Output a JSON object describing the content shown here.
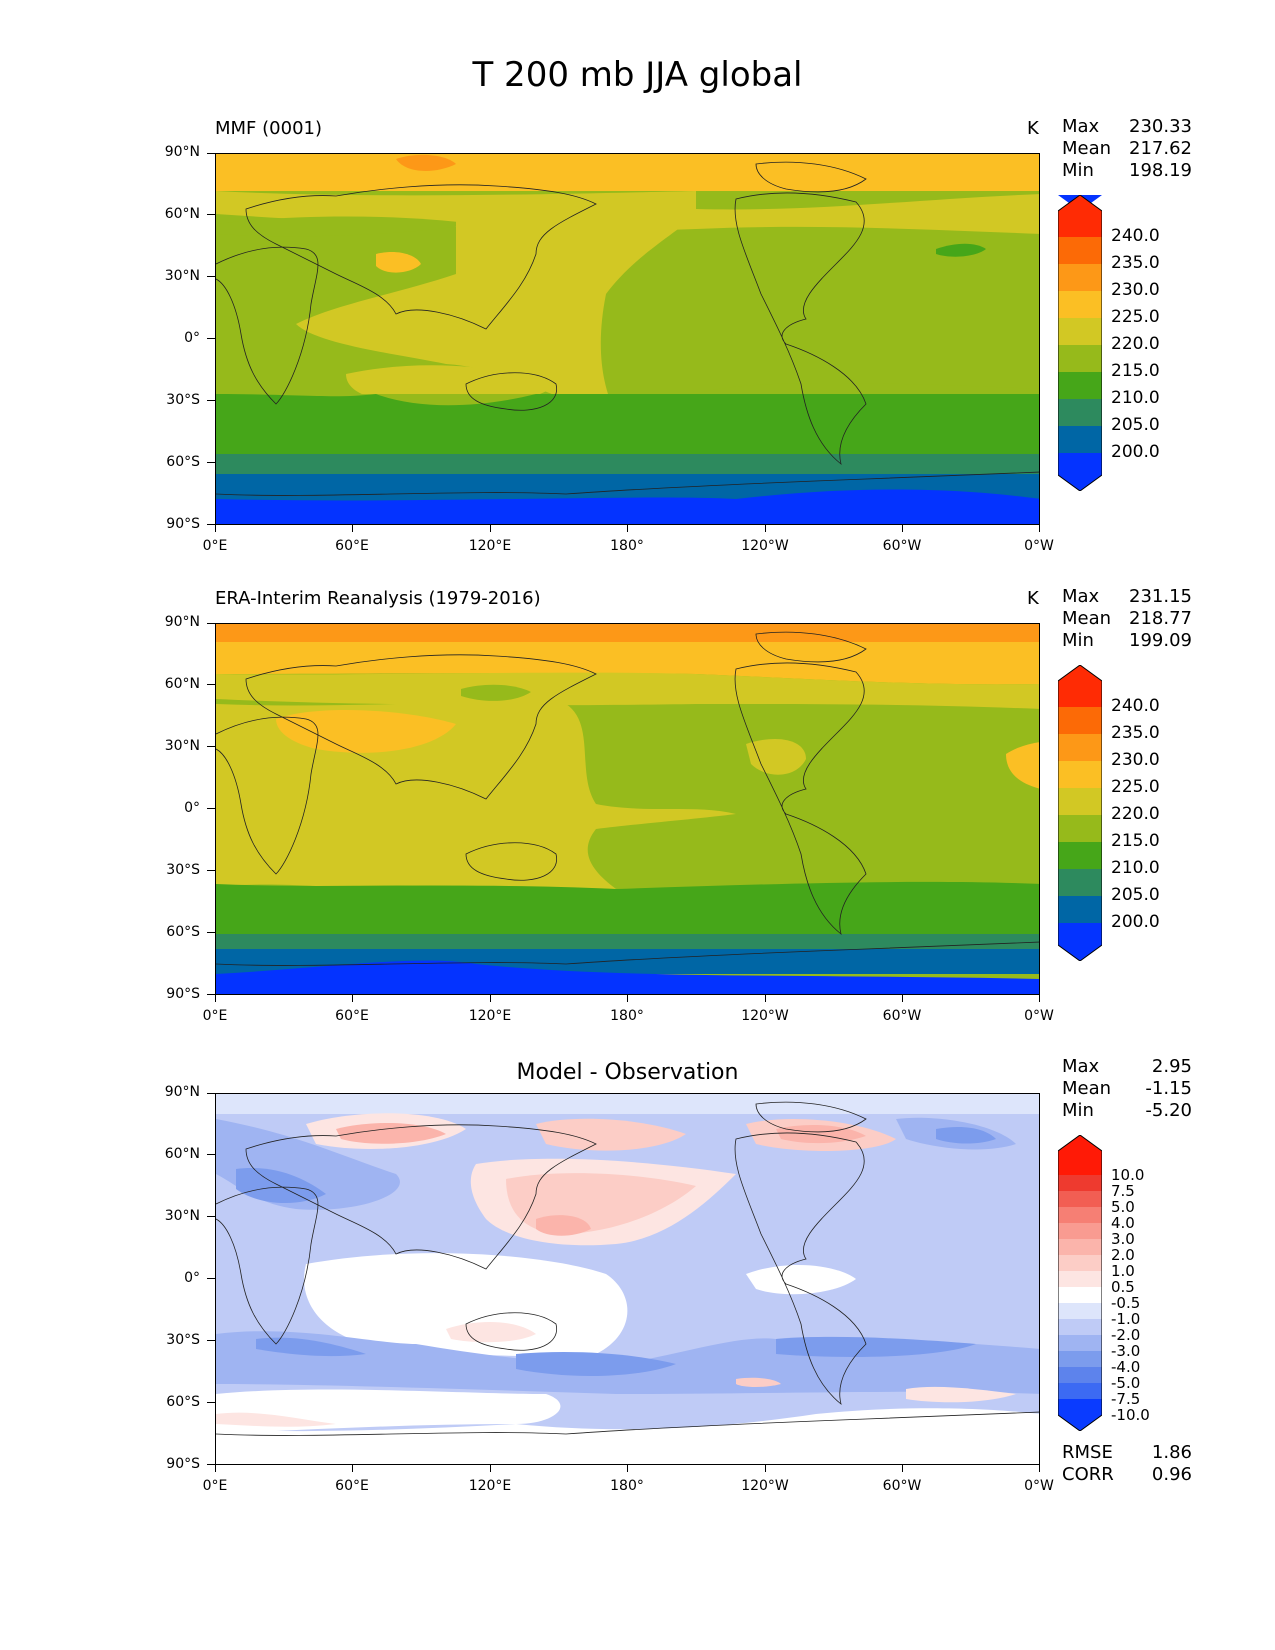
{
  "figure_title": "T 200 mb JJA global",
  "axes": {
    "lat_labels": [
      "90°N",
      "60°N",
      "30°N",
      "0°",
      "30°S",
      "60°S",
      "90°S"
    ],
    "lon_labels": [
      "0°E",
      "60°E",
      "120°E",
      "180°",
      "120°W",
      "60°W",
      "0°W"
    ]
  },
  "panels": [
    {
      "title": "MMF (0001)",
      "units": "K",
      "stats": {
        "max_label": "Max",
        "max": "230.33",
        "mean_label": "Mean",
        "mean": "217.62",
        "min_label": "Min",
        "min": "198.19"
      },
      "colorbar_labels": [
        "240.0",
        "235.0",
        "230.0",
        "225.0",
        "220.0",
        "215.0",
        "210.0",
        "205.0",
        "200.0"
      ]
    },
    {
      "title": "ERA-Interim Reanalysis (1979-2016)",
      "units": "K",
      "stats": {
        "max_label": "Max",
        "max": "231.15",
        "mean_label": "Mean",
        "mean": "218.77",
        "min_label": "Min",
        "min": "199.09"
      },
      "colorbar_labels": [
        "240.0",
        "235.0",
        "230.0",
        "225.0",
        "220.0",
        "215.0",
        "210.0",
        "205.0",
        "200.0"
      ]
    },
    {
      "title": "Model - Observation",
      "stats": {
        "max_label": "Max",
        "max": "2.95",
        "mean_label": "Mean",
        "mean": "-1.15",
        "min_label": "Min",
        "min": "-5.20"
      },
      "colorbar_labels": [
        "10.0",
        "7.5",
        "5.0",
        "4.0",
        "3.0",
        "2.0",
        "1.0",
        "0.5",
        "-0.5",
        "-1.0",
        "-2.0",
        "-3.0",
        "-4.0",
        "-5.0",
        "-7.5",
        "-10.0"
      ],
      "rmse_label": "RMSE",
      "rmse": "1.86",
      "corr_label": "CORR",
      "corr": "0.96"
    }
  ],
  "colors": {
    "abs_levels": [
      "#0433ff",
      "#0066a5",
      "#2d8a5e",
      "#46a619",
      "#96ba1b",
      "#d2c824",
      "#fbbf24",
      "#fd9817",
      "#fc6a06",
      "#ff2b04"
    ],
    "diff_levels": [
      "#0a3bff",
      "#3c6af3",
      "#5d83ec",
      "#7c9ced",
      "#9fb4f2",
      "#bfcbf6",
      "#dde5fb",
      "#ffffff",
      "#fde5e2",
      "#fccdc6",
      "#fbb4ab",
      "#f99b91",
      "#f67f74",
      "#f25e53",
      "#ee3a2f",
      "#ff1a06"
    ]
  }
}
